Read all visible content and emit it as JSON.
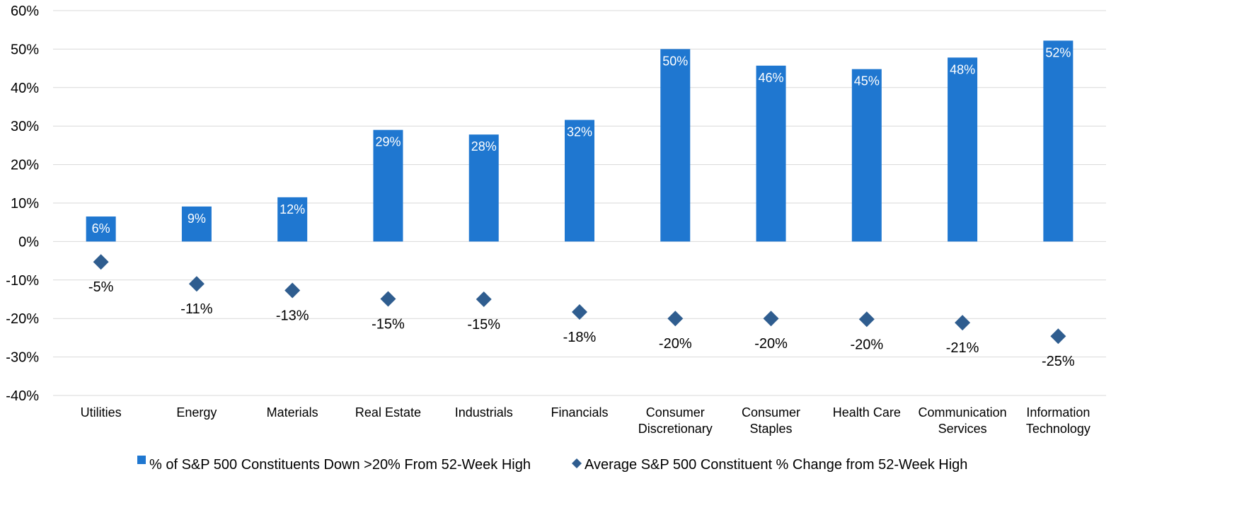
{
  "chart_data": {
    "type": "bar",
    "categories": [
      [
        "Utilities"
      ],
      [
        "Energy"
      ],
      [
        "Materials"
      ],
      [
        "Real Estate"
      ],
      [
        "Industrials"
      ],
      [
        "Financials"
      ],
      [
        "Consumer",
        "Discretionary"
      ],
      [
        "Consumer",
        "Staples"
      ],
      [
        "Health Care"
      ],
      [
        "Communication",
        "Services"
      ],
      [
        "Information",
        "Technology"
      ]
    ],
    "series": [
      {
        "name": "% of S&P 500 Constituents Down >20% From 52-Week High",
        "type": "bar",
        "color": "#1f77d0",
        "values": [
          6.5,
          9.1,
          11.5,
          29.0,
          27.8,
          31.6,
          50.0,
          45.7,
          44.8,
          47.8,
          52.2
        ],
        "labels": [
          "6%",
          "9%",
          "12%",
          "29%",
          "28%",
          "32%",
          "50%",
          "46%",
          "45%",
          "48%",
          "52%"
        ]
      },
      {
        "name": "Average S&P 500 Constituent % Change from 52-Week High",
        "type": "scatter",
        "marker": "diamond",
        "color": "#2f5d8f",
        "values": [
          -5.3,
          -11.0,
          -12.7,
          -14.9,
          -15.0,
          -18.3,
          -20.0,
          -20.0,
          -20.2,
          -21.1,
          -24.6
        ],
        "labels": [
          "-5%",
          "-11%",
          "-13%",
          "-15%",
          "-15%",
          "-18%",
          "-20%",
          "-20%",
          "-20%",
          "-21%",
          "-25%"
        ]
      }
    ],
    "ylim": [
      -40,
      60
    ],
    "yticks": [
      60,
      50,
      40,
      30,
      20,
      10,
      0,
      -10,
      -20,
      -30,
      -40
    ],
    "ytick_labels": [
      "60%",
      "50%",
      "40%",
      "30%",
      "20%",
      "10%",
      "0%",
      "-10%",
      "-20%",
      "-30%",
      "-40%"
    ],
    "grid": true,
    "legend": "bottom",
    "title": "",
    "xlabel": "",
    "ylabel": ""
  }
}
